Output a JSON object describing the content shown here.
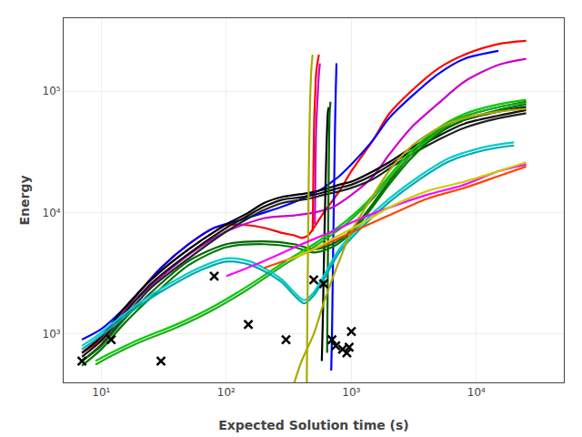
{
  "chart_data": {
    "type": "line",
    "xlabel": "Expected Solution time (s)",
    "ylabel": "Energy",
    "log": true,
    "grid": true,
    "xlim": [
      5,
      50000
    ],
    "ylim": [
      400,
      400000
    ],
    "xticks": [
      {
        "value": 10,
        "label": "10¹"
      },
      {
        "value": 100,
        "label": "10²"
      },
      {
        "value": 1000,
        "label": "10³"
      },
      {
        "value": 10000,
        "label": "10⁴"
      }
    ],
    "yticks": [
      {
        "value": 1000,
        "label": "10³"
      },
      {
        "value": 10000,
        "label": "10⁴"
      },
      {
        "value": 100000,
        "label": "10⁵"
      }
    ],
    "series": [
      {
        "color": "#ff0000",
        "x": [
          7,
          10,
          15,
          20,
          30,
          50,
          80,
          120,
          200,
          280,
          350,
          400,
          450,
          500,
          600,
          800,
          1000,
          1500,
          2000,
          3000,
          5000,
          8000,
          15000,
          25000
        ],
        "values": [
          700,
          900,
          1500,
          2200,
          3500,
          5500,
          7500,
          8000,
          7500,
          6800,
          6500,
          6200,
          6500,
          7500,
          10000,
          15000,
          22000,
          40000,
          65000,
          100000,
          155000,
          200000,
          245000,
          260000
        ]
      },
      {
        "color": "#ff0000",
        "x": [
          490,
          495,
          500,
          505,
          510,
          515,
          520,
          530,
          540,
          550
        ],
        "values": [
          7000,
          15000,
          35000,
          60000,
          80000,
          100000,
          130000,
          160000,
          180000,
          200000
        ]
      },
      {
        "color": "#0000ff",
        "x": [
          7,
          10,
          15,
          20,
          30,
          50,
          80,
          120,
          200,
          300,
          400,
          500,
          600,
          700,
          800,
          1000,
          1500,
          2000,
          3000,
          5000,
          8000,
          15000
        ],
        "values": [
          900,
          1100,
          1600,
          2200,
          3500,
          5500,
          7500,
          8500,
          10000,
          11500,
          13000,
          14500,
          16000,
          18000,
          20000,
          25000,
          40000,
          60000,
          90000,
          140000,
          185000,
          215000
        ]
      },
      {
        "color": "#0000ff",
        "x": [
          690,
          700,
          710,
          720,
          730,
          740,
          750,
          760
        ],
        "values": [
          500,
          1000,
          3000,
          8000,
          20000,
          50000,
          100000,
          170000
        ]
      },
      {
        "color": "#cc00cc",
        "x": [
          7,
          10,
          15,
          25,
          50,
          100,
          200,
          350,
          500,
          700,
          1000,
          1500,
          2000,
          3000,
          5000,
          8000,
          15000,
          25000
        ],
        "values": [
          700,
          950,
          1500,
          2500,
          4500,
          7000,
          9000,
          9500,
          10000,
          11000,
          14000,
          20000,
          30000,
          50000,
          80000,
          120000,
          165000,
          185000
        ]
      },
      {
        "color": "#cc00cc",
        "x": [
          510,
          515,
          520,
          530,
          540,
          550,
          560
        ],
        "values": [
          8000,
          18000,
          40000,
          70000,
          100000,
          140000,
          170000
        ]
      },
      {
        "color": "#000000",
        "x": [
          7,
          10,
          15,
          25,
          50,
          100,
          150,
          200,
          280,
          350,
          450,
          600,
          800,
          1000,
          1500,
          2000,
          3000,
          5000,
          8000,
          15000,
          25000
        ],
        "values": [
          700,
          950,
          1600,
          2800,
          5000,
          8000,
          10000,
          12000,
          13500,
          14000,
          14500,
          15500,
          17000,
          18000,
          22000,
          26000,
          34000,
          46000,
          58000,
          68000,
          74000
        ]
      },
      {
        "color": "#111111",
        "x": [
          7,
          10,
          15,
          25,
          50,
          100,
          150,
          200,
          280,
          350,
          450,
          600,
          800,
          1000,
          1500,
          2000,
          3000,
          5000,
          8000,
          15000,
          25000
        ],
        "values": [
          650,
          880,
          1450,
          2600,
          4600,
          7500,
          9500,
          11200,
          12800,
          13200,
          13700,
          14700,
          16000,
          17000,
          20500,
          24500,
          32000,
          43000,
          54000,
          63000,
          70000
        ]
      },
      {
        "color": "#222222",
        "x": [
          7,
          10,
          15,
          25,
          50,
          100,
          150,
          200,
          280,
          350,
          450,
          600,
          800,
          1000,
          1500,
          2000,
          3000,
          5000,
          8000,
          15000,
          25000
        ],
        "values": [
          600,
          820,
          1350,
          2400,
          4200,
          7000,
          9000,
          10500,
          12000,
          12500,
          13000,
          14000,
          15000,
          16000,
          19000,
          23000,
          30000,
          40000,
          50000,
          60000,
          66000
        ]
      },
      {
        "color": "#000000",
        "x": [
          580,
          590,
          600,
          610,
          620,
          630,
          640,
          650,
          660
        ],
        "values": [
          600,
          1200,
          3000,
          7000,
          15000,
          30000,
          50000,
          68000,
          74000
        ]
      },
      {
        "color": "#006600",
        "x": [
          7,
          10,
          15,
          25,
          50,
          100,
          200,
          350,
          500,
          700,
          900,
          1100,
          1500,
          2000,
          3000,
          5000,
          8000,
          15000,
          25000
        ],
        "values": [
          600,
          800,
          1300,
          2200,
          4000,
          5500,
          5800,
          5500,
          5000,
          5500,
          6500,
          8000,
          12000,
          18000,
          30000,
          48000,
          62000,
          74000,
          82000
        ]
      },
      {
        "color": "#007700",
        "x": [
          7,
          10,
          15,
          25,
          50,
          100,
          200,
          350,
          500,
          700,
          900,
          1100,
          1500,
          2000,
          3000,
          5000,
          8000,
          15000,
          25000
        ],
        "values": [
          550,
          750,
          1200,
          2000,
          3700,
          5200,
          5500,
          5200,
          4700,
          5200,
          6200,
          7600,
          11400,
          17000,
          28000,
          45000,
          58000,
          70000,
          78000
        ]
      },
      {
        "color": "#006600",
        "x": [
          640,
          645,
          650,
          655,
          660,
          665,
          670,
          680
        ],
        "values": [
          700,
          2000,
          5000,
          12000,
          25000,
          45000,
          65000,
          82000
        ]
      },
      {
        "color": "#00cc00",
        "x": [
          9,
          12,
          20,
          40,
          80,
          150,
          300,
          500,
          700,
          900,
          1200,
          1500,
          2000,
          3000,
          5000,
          8000,
          15000,
          25000
        ],
        "values": [
          600,
          700,
          900,
          1200,
          1700,
          2500,
          4000,
          5500,
          7000,
          8500,
          11000,
          14000,
          20000,
          32000,
          50000,
          65000,
          78000,
          85000
        ]
      },
      {
        "color": "#22aa22",
        "x": [
          9,
          12,
          20,
          40,
          80,
          150,
          300,
          500,
          700,
          900,
          1200,
          1500,
          2000,
          3000,
          5000,
          8000,
          15000,
          25000
        ],
        "values": [
          560,
          660,
          850,
          1130,
          1600,
          2350,
          3800,
          5200,
          6600,
          8000,
          10500,
          13200,
          19000,
          30000,
          47000,
          62000,
          74000,
          80000
        ]
      },
      {
        "color": "#00cccc",
        "x": [
          7,
          9,
          12,
          20,
          35,
          60,
          100,
          150,
          200,
          280,
          350,
          420,
          500,
          600,
          800,
          1200,
          2000,
          3500,
          6000,
          12000,
          20000
        ],
        "values": [
          800,
          950,
          1200,
          1800,
          2600,
          3500,
          4200,
          4000,
          3500,
          2800,
          2200,
          1900,
          2200,
          3000,
          5000,
          8000,
          13000,
          20000,
          28000,
          35000,
          38000
        ]
      },
      {
        "color": "#00aaaa",
        "x": [
          7,
          9,
          12,
          20,
          35,
          60,
          100,
          150,
          200,
          280,
          350,
          420,
          500,
          600,
          800,
          1200,
          2000,
          3500,
          6000,
          12000,
          20000
        ],
        "values": [
          750,
          900,
          1130,
          1700,
          2450,
          3300,
          3950,
          3750,
          3300,
          2650,
          2080,
          1790,
          2080,
          2800,
          4700,
          7500,
          12200,
          18800,
          26400,
          33000,
          35800
        ]
      },
      {
        "color": "#aaaa00",
        "x": [
          350,
          400,
          500,
          600,
          700,
          800,
          1000,
          1500,
          2000,
          3000,
          5000,
          8000,
          15000,
          25000
        ],
        "values": [
          400,
          600,
          1000,
          1800,
          2800,
          4000,
          7000,
          14000,
          22000,
          35000,
          50000,
          60000,
          68000,
          72000
        ]
      },
      {
        "color": "#aaaa00",
        "x": [
          440,
          445,
          450,
          455,
          460,
          465,
          470,
          480,
          490
        ],
        "values": [
          400,
          1500,
          5000,
          15000,
          35000,
          65000,
          100000,
          160000,
          200000
        ]
      },
      {
        "color": "#ff00ff",
        "x": [
          100,
          200,
          400,
          700,
          1200,
          2000,
          4000,
          8000,
          15000,
          25000
        ],
        "values": [
          3000,
          4000,
          5500,
          7000,
          9000,
          11000,
          14000,
          17000,
          22000,
          25000
        ]
      },
      {
        "color": "#ff4400",
        "x": [
          200,
          400,
          700,
          1200,
          2000,
          4000,
          8000,
          15000,
          25000
        ],
        "values": [
          3500,
          4500,
          5800,
          7500,
          9500,
          13000,
          16000,
          20000,
          24000
        ]
      },
      {
        "color": "#cccc00",
        "x": [
          300,
          500,
          800,
          1300,
          2000,
          4000,
          8000,
          15000,
          25000
        ],
        "values": [
          4000,
          5000,
          6500,
          8500,
          11000,
          15000,
          18000,
          22000,
          26000
        ]
      },
      {
        "type": "scatter",
        "marker": "x",
        "color": "#000000",
        "x": [
          7,
          12,
          30,
          80,
          150,
          300,
          500,
          700,
          750,
          850,
          920,
          960,
          1000,
          600
        ],
        "values": [
          600,
          900,
          600,
          3000,
          1200,
          900,
          2800,
          900,
          800,
          750,
          700,
          780,
          1050,
          2600
        ]
      }
    ]
  }
}
